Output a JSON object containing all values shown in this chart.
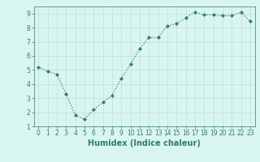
{
  "x": [
    0,
    1,
    2,
    3,
    4,
    5,
    6,
    7,
    8,
    9,
    10,
    11,
    12,
    13,
    14,
    15,
    16,
    17,
    18,
    19,
    20,
    21,
    22,
    23
  ],
  "y": [
    5.2,
    4.9,
    4.7,
    3.3,
    1.8,
    1.5,
    2.2,
    2.7,
    3.2,
    4.4,
    5.4,
    6.5,
    7.3,
    7.3,
    8.1,
    8.3,
    8.7,
    9.1,
    8.9,
    8.9,
    8.85,
    8.85,
    9.1,
    8.45
  ],
  "xlabel": "Humidex (Indice chaleur)",
  "ylim": [
    1,
    9.5
  ],
  "xlim": [
    -0.5,
    23.5
  ],
  "yticks": [
    1,
    2,
    3,
    4,
    5,
    6,
    7,
    8,
    9
  ],
  "xticks": [
    0,
    1,
    2,
    3,
    4,
    5,
    6,
    7,
    8,
    9,
    10,
    11,
    12,
    13,
    14,
    15,
    16,
    17,
    18,
    19,
    20,
    21,
    22,
    23
  ],
  "line_color": "#2e7d6e",
  "marker": "D",
  "marker_size": 2.0,
  "bg_color": "#d9f5f0",
  "grid_color": "#c0ddd8",
  "label_color": "#2e7d6e",
  "tick_label_fontsize": 5.5,
  "xlabel_fontsize": 7.0
}
